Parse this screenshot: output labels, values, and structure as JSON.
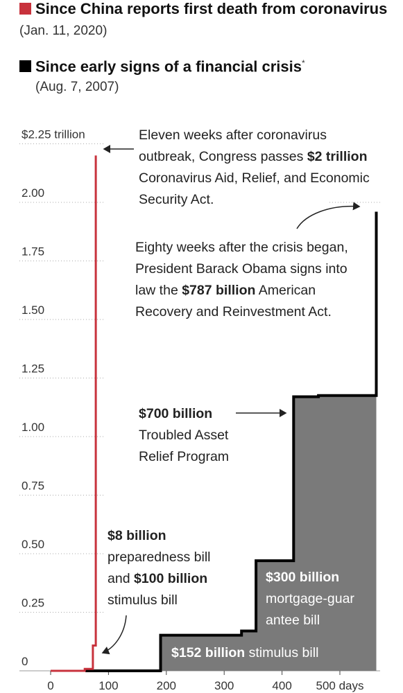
{
  "legend": {
    "red": {
      "label": "Since China reports first death from coronavirus",
      "date": "(Jan. 11, 2020)",
      "color": "#c8323c"
    },
    "black": {
      "label": "Since early signs of a financial crisis",
      "marker": "*",
      "date": "(Aug. 7, 2007)",
      "color": "#000000"
    }
  },
  "annotations": {
    "cares": {
      "pre": "Eleven weeks after coronavirus outbreak, Congress passes ",
      "bold": "$2 trillion",
      "post": " Coronavirus Aid, Relief, and Economic Security Act."
    },
    "arra": {
      "pre": "Eighty weeks after the crisis began, President Barack Obama signs into law the ",
      "bold": "$787 billion",
      "post": " American Recovery and Reinvestment Act."
    },
    "tarp": {
      "bold": "$700 billion",
      "post": "Troubled Asset Relief Program"
    },
    "prep": {
      "bold1": "$8 billion",
      "mid": "preparedness bill and ",
      "bold2": "$100 billion",
      "post": "stimulus bill"
    },
    "mortgage": {
      "bold": "$300 billion",
      "post": "mortgage-guar antee bill"
    },
    "stimulus": {
      "bold": "$152 billion",
      "post": " stimulus bill"
    }
  },
  "chart_data": {
    "type": "line",
    "xlim": [
      0,
      560
    ],
    "ylim": [
      0,
      2.25
    ],
    "x_ticks": [
      0,
      100,
      200,
      300,
      400,
      500
    ],
    "x_tick_labels": [
      "0",
      "100",
      "200",
      "300",
      "400",
      "500 days"
    ],
    "y_ticks": [
      0,
      0.25,
      0.5,
      0.75,
      1.0,
      1.25,
      1.5,
      1.75,
      2.0,
      2.25
    ],
    "y_tick_labels": [
      "0",
      "0.25",
      "0.50",
      "0.75",
      "1.00",
      "1.25",
      "1.50",
      "1.75",
      "2.00",
      "$2.25 trillion"
    ],
    "series": [
      {
        "color": "#c8323c",
        "points": [
          [
            0,
            0
          ],
          [
            59,
            0
          ],
          [
            59,
            0.008
          ],
          [
            73,
            0.008
          ],
          [
            73,
            0.108
          ],
          [
            78,
            0.108
          ],
          [
            78,
            2.2
          ]
        ]
      },
      {
        "color": "#000000",
        "fill": "#7a7a7a",
        "points": [
          [
            60,
            0
          ],
          [
            190,
            0
          ],
          [
            190,
            0.152
          ],
          [
            330,
            0.152
          ],
          [
            330,
            0.17
          ],
          [
            355,
            0.17
          ],
          [
            355,
            0.47
          ],
          [
            420,
            0.47
          ],
          [
            420,
            1.17
          ],
          [
            463,
            1.17
          ],
          [
            463,
            1.175
          ],
          [
            563,
            1.175
          ],
          [
            563,
            1.96
          ]
        ]
      }
    ]
  }
}
